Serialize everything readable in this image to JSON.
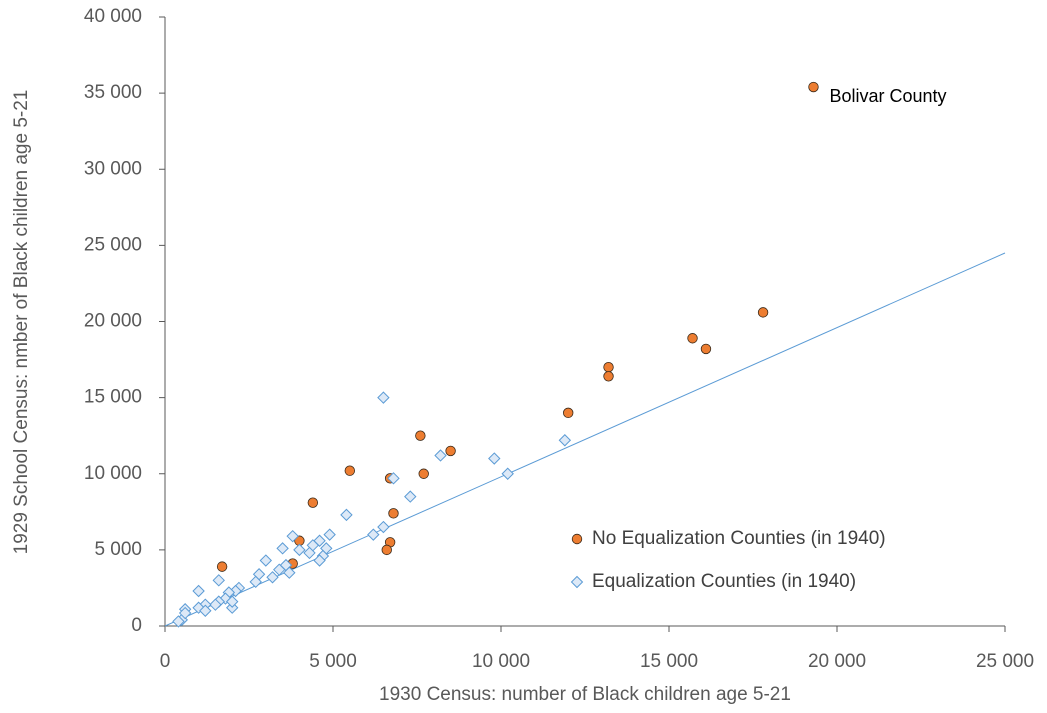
{
  "chart_data": {
    "type": "scatter",
    "x_label": "1930 Census: number of Black children age 5-21",
    "y_label": "1929 School Census: nmber of Black children age 5-21",
    "xlim": [
      0,
      25000
    ],
    "ylim": [
      0,
      40000
    ],
    "xticks": [
      0,
      {
        "value": 5000,
        "label": "5 000"
      },
      {
        "value": 10000,
        "label": "10 000"
      },
      {
        "value": 15000,
        "label": "15 000"
      },
      {
        "value": 20000,
        "label": "20 000"
      },
      {
        "value": 25000,
        "label": "25 000"
      }
    ],
    "yticks": [
      0,
      {
        "value": 5000,
        "label": "5 000"
      },
      {
        "value": 10000,
        "label": "10 000"
      },
      {
        "value": 15000,
        "label": "15 000"
      },
      {
        "value": 20000,
        "label": "20 000"
      },
      {
        "value": 25000,
        "label": "25 000"
      },
      {
        "value": 30000,
        "label": "30 000"
      },
      {
        "value": 35000,
        "label": "35 000"
      },
      {
        "value": 40000,
        "label": "40 000"
      }
    ],
    "grid": false,
    "legend": "lower right",
    "reference_line": {
      "color": "#5b9bd5",
      "x": [
        0,
        25000
      ],
      "y": [
        0,
        24500
      ]
    },
    "annotations": [
      {
        "text": "Bolivar County",
        "x": 19300,
        "y": 35400
      }
    ],
    "series": [
      {
        "name": "No Equalization Counties (in 1940)",
        "color": "#ed7d31",
        "marker": "circle",
        "x": [
          19300,
          17800,
          15700,
          16100,
          13200,
          13200,
          12000,
          7600,
          8500,
          5500,
          7700,
          6700,
          4400,
          6800,
          4000,
          6700,
          3800,
          6600,
          1700
        ],
        "values": [
          35400,
          20600,
          18900,
          18200,
          17000,
          16400,
          14000,
          12500,
          11500,
          10200,
          10000,
          9700,
          8100,
          7400,
          5600,
          5500,
          4100,
          5000,
          3900
        ]
      },
      {
        "name": "Equalization Counties (in 1940)",
        "color": "#5b9bd5",
        "marker": "diamond",
        "x": [
          6500,
          11900,
          9800,
          8200,
          10200,
          6800,
          7300,
          5400,
          6500,
          6200,
          4900,
          3800,
          4600,
          4400,
          4800,
          3500,
          4000,
          4300,
          4700,
          4600,
          3000,
          1600,
          3600,
          3400,
          3700,
          3200,
          2800,
          2700,
          2200,
          2100,
          1900,
          1000,
          1800,
          1600,
          1500,
          1200,
          2000,
          1000,
          1200,
          600,
          500,
          400,
          2000,
          600
        ],
        "values": [
          15000,
          12200,
          11000,
          11200,
          10000,
          9700,
          8500,
          7300,
          6500,
          6000,
          6000,
          5900,
          5600,
          5300,
          5100,
          5100,
          5000,
          4800,
          4600,
          4300,
          4300,
          3000,
          4000,
          3700,
          3500,
          3200,
          3400,
          2900,
          2500,
          2300,
          2200,
          2300,
          1800,
          1600,
          1400,
          1400,
          1200,
          1200,
          1000,
          1100,
          400,
          300,
          1600,
          850
        ]
      }
    ]
  }
}
